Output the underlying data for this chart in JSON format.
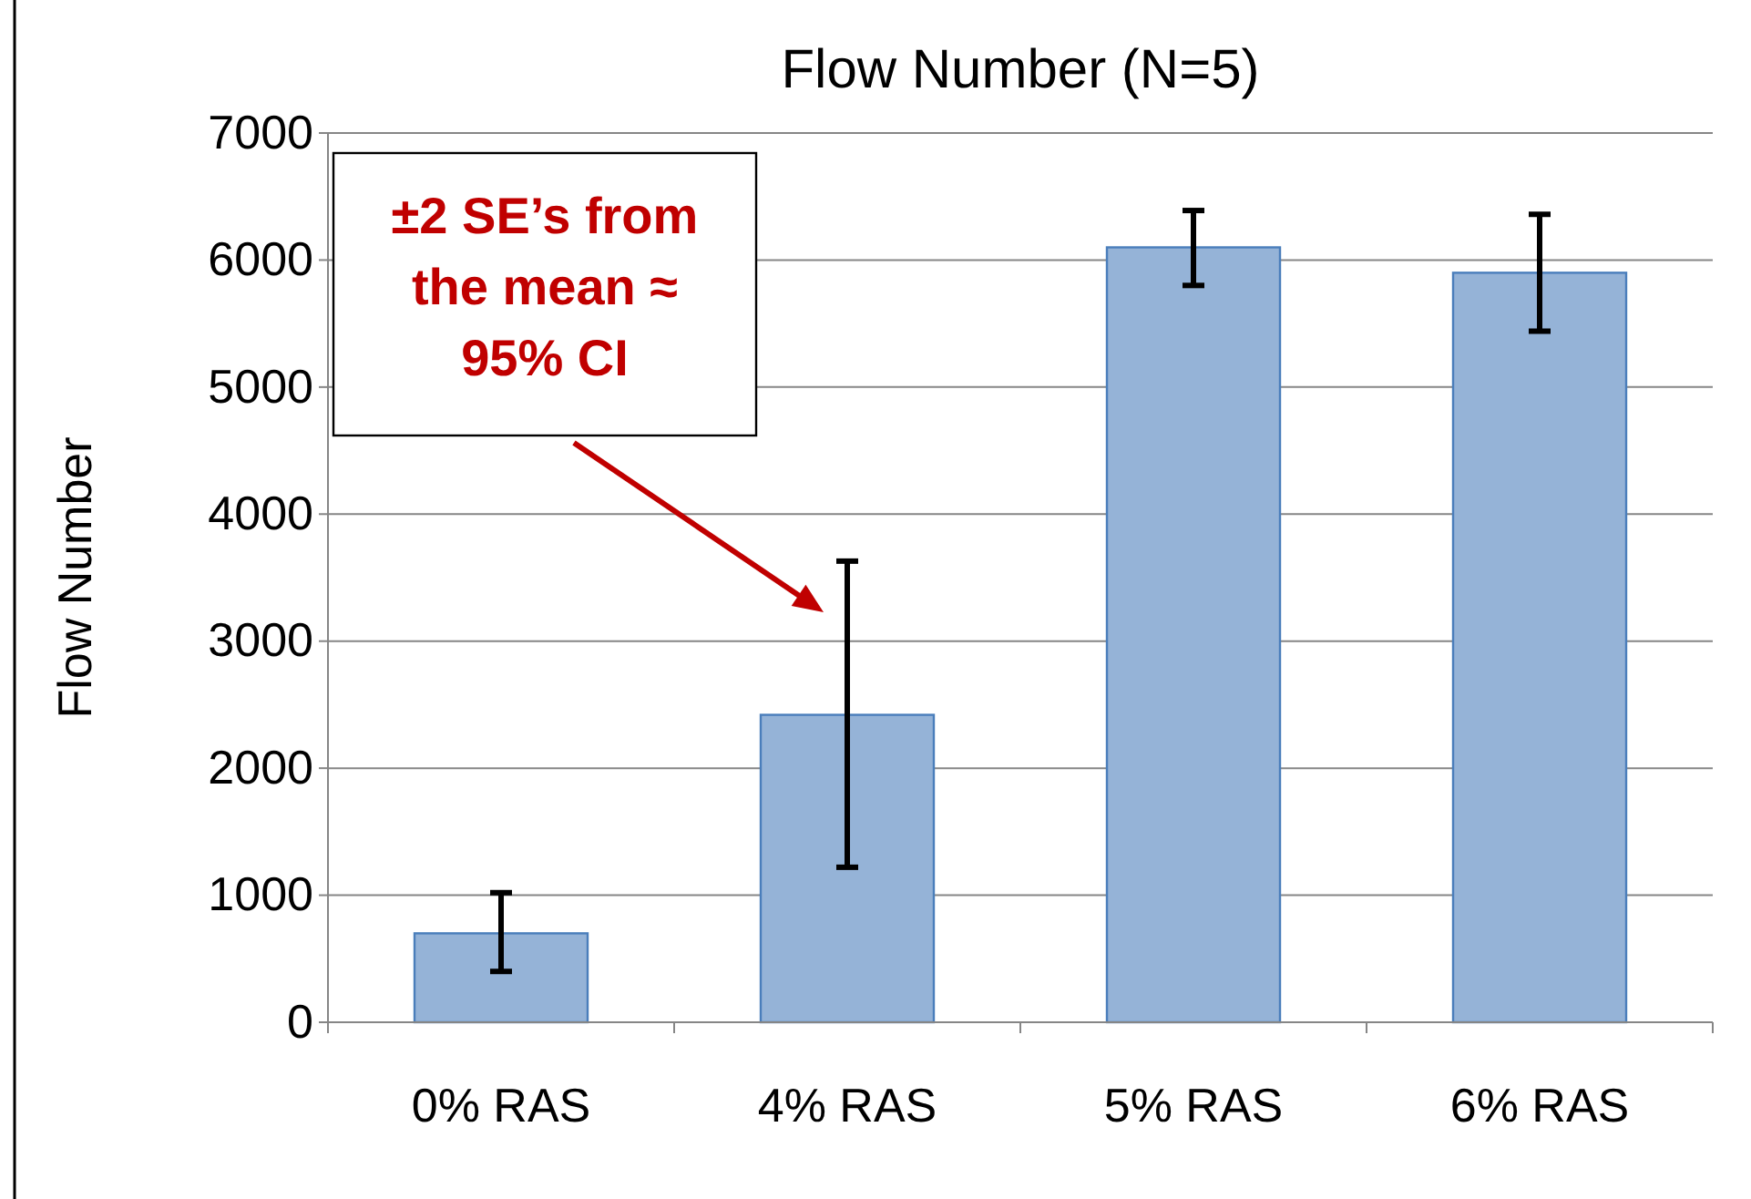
{
  "chart_data": {
    "type": "bar",
    "title": "Flow Number (N=5)",
    "ylabel": "Flow Number",
    "categories": [
      "0% RAS",
      "4% RAS",
      "5% RAS",
      "6% RAS"
    ],
    "values": [
      700,
      2420,
      6100,
      5900
    ],
    "errors": [
      [
        400,
        1020
      ],
      [
        1220,
        3630
      ],
      [
        5800,
        6390
      ],
      [
        5440,
        6360
      ]
    ],
    "color": "#95b3d7",
    "ylim": [
      0,
      7000
    ],
    "yticks": [
      0,
      1000,
      2000,
      3000,
      4000,
      5000,
      6000,
      7000
    ],
    "grid": "y",
    "annotations": [
      "±2 SE’s from the mean ≈ 95% CI"
    ]
  }
}
